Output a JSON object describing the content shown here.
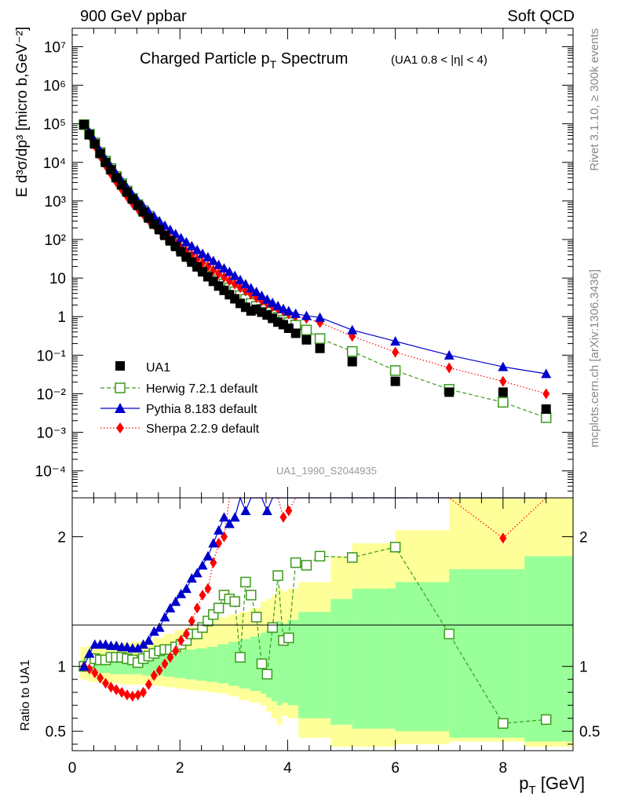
{
  "header": {
    "left": "900 GeV ppbar",
    "right": "Soft QCD"
  },
  "side": {
    "top": "Rivet 3.1.10, ≥ 300k events",
    "bottom": "mcplots.cern.ch [arXiv:1306.3436]"
  },
  "watermark": "UA1_1990_S2044935",
  "colors": {
    "data": "#000000",
    "herwig": "#3a9a1a",
    "pythia": "#0000cc",
    "sherpa": "#ff0000",
    "band_yellow": "#ffff99",
    "band_green": "#99ff99"
  },
  "chart_data": [
    {
      "type": "scatter",
      "title": "Charged Particle p",
      "title_sub": "T",
      "title_tail": " Spectrum",
      "title_cut": "(UA1 0.8 < |η| < 4)",
      "ylabel": "E d³σ/dp³ [micro b,GeV⁻²]",
      "yscale": "log",
      "ylim": [
        2e-05,
        30000000
      ],
      "xlim": [
        0,
        9.3
      ],
      "y_tick_labels": [
        "10⁻⁴",
        "10⁻³",
        "10⁻²",
        "10⁻¹",
        "1",
        "10",
        "10²",
        "10³",
        "10⁴",
        "10⁵",
        "10⁶",
        "10⁷"
      ],
      "legend": [
        {
          "key": "data",
          "label": "UA1"
        },
        {
          "key": "herwig",
          "label": "Herwig 7.2.1 default"
        },
        {
          "key": "pythia",
          "label": "Pythia 8.183 default"
        },
        {
          "key": "sherpa",
          "label": "Sherpa 2.2.9 default"
        }
      ],
      "x": [
        0.22,
        0.32,
        0.42,
        0.52,
        0.62,
        0.72,
        0.82,
        0.92,
        1.02,
        1.12,
        1.22,
        1.32,
        1.42,
        1.52,
        1.62,
        1.72,
        1.82,
        1.92,
        2.02,
        2.12,
        2.22,
        2.32,
        2.42,
        2.52,
        2.62,
        2.72,
        2.82,
        2.92,
        3.02,
        3.12,
        3.22,
        3.32,
        3.42,
        3.52,
        3.62,
        3.72,
        3.82,
        3.92,
        4.02,
        4.15,
        4.35,
        4.6,
        5.2,
        6.0,
        7.0,
        8.0,
        8.8
      ],
      "series": [
        {
          "key": "data",
          "name": "UA1",
          "values": [
            95000,
            52000,
            30000,
            17000,
            10000,
            6400,
            4000,
            2600,
            1700,
            1120,
            770,
            520,
            360,
            250,
            180,
            128,
            92,
            66,
            48,
            35,
            26,
            19.5,
            14.5,
            10.8,
            8.2,
            6.2,
            4.8,
            3.7,
            2.9,
            2.2,
            1.75,
            1.4,
            1.55,
            1.3,
            1.1,
            0.9,
            0.72,
            0.62,
            0.5,
            0.37,
            0.25,
            0.15,
            0.068,
            0.021,
            0.011,
            0.011,
            0.004
          ]
        },
        {
          "key": "herwig",
          "name": "Herwig 7.2.1 default",
          "values": [
            95000,
            54000,
            32000,
            18000,
            10800,
            6900,
            4300,
            2800,
            1800,
            1170,
            800,
            560,
            400,
            280,
            200,
            145,
            104,
            76,
            56,
            42,
            32,
            24.5,
            18.8,
            14.5,
            11.3,
            8.9,
            7.0,
            5.5,
            4.4,
            3.5,
            2.8,
            2.2,
            1.85,
            1.55,
            1.3,
            1.1,
            0.95,
            0.8,
            0.7,
            0.6,
            0.45,
            0.27,
            0.125,
            0.04,
            0.013,
            0.006,
            0.0024
          ]
        },
        {
          "key": "pythia",
          "name": "Pythia 8.183 default",
          "values": [
            95000,
            60000,
            36000,
            20000,
            12000,
            7700,
            5000,
            3300,
            2200,
            1450,
            1000,
            720,
            530,
            400,
            300,
            230,
            180,
            140,
            110,
            86,
            68,
            54,
            43,
            35,
            28,
            22,
            18,
            14.5,
            11.5,
            9,
            7,
            5.5,
            4.4,
            3.5,
            2.8,
            2.3,
            1.9,
            1.6,
            1.4,
            1.2,
            1.05,
            0.95,
            0.45,
            0.23,
            0.1,
            0.05,
            0.033
          ]
        },
        {
          "key": "sherpa",
          "name": "Sherpa 2.2.9 default",
          "values": [
            95000,
            50000,
            27000,
            14500,
            8300,
            5000,
            3100,
            2000,
            1300,
            870,
            620,
            450,
            320,
            240,
            180,
            135,
            103,
            80,
            62,
            49,
            39,
            31,
            25,
            20,
            16,
            13,
            10.5,
            8.5,
            7,
            5.7,
            4.6,
            3.8,
            3.1,
            2.6,
            2.2,
            1.85,
            1.6,
            1.4,
            1.2,
            1.05,
            0.9,
            0.7,
            0.31,
            0.12,
            0.047,
            0.021,
            0.01
          ]
        }
      ]
    },
    {
      "type": "scatter",
      "ylabel": "Ratio to UA1",
      "xlabel": "p",
      "xlabel_sub": "T",
      "xlabel_unit": " [GeV]",
      "ylim": [
        0.35,
        2.3
      ],
      "xlim": [
        0,
        9.3
      ],
      "y_tick_labels": [
        "0.5",
        "1",
        "2"
      ],
      "x_tick_labels": [
        "0",
        "2",
        "4",
        "6",
        "8"
      ],
      "band_edges": [
        0.15,
        0.3,
        0.5,
        0.7,
        0.9,
        1.1,
        1.3,
        1.5,
        1.7,
        1.9,
        2.1,
        2.3,
        2.5,
        2.7,
        2.9,
        3.1,
        3.3,
        3.5,
        3.6,
        3.7,
        3.8,
        3.9,
        4.0,
        4.2,
        4.8,
        5.2,
        6.0,
        7.0,
        8.4,
        9.3
      ],
      "band_yellow": [
        [
          0.9,
          1.15
        ],
        [
          0.88,
          1.16
        ],
        [
          0.87,
          1.17
        ],
        [
          0.87,
          1.18
        ],
        [
          0.86,
          1.18
        ],
        [
          0.86,
          1.19
        ],
        [
          0.86,
          1.2
        ],
        [
          0.85,
          1.22
        ],
        [
          0.84,
          1.25
        ],
        [
          0.83,
          1.28
        ],
        [
          0.82,
          1.3
        ],
        [
          0.81,
          1.32
        ],
        [
          0.8,
          1.35
        ],
        [
          0.79,
          1.38
        ],
        [
          0.77,
          1.4
        ],
        [
          0.74,
          1.42
        ],
        [
          0.72,
          1.45
        ],
        [
          0.7,
          1.5
        ],
        [
          0.65,
          1.52
        ],
        [
          0.6,
          1.55
        ],
        [
          0.55,
          1.6
        ],
        [
          0.62,
          1.58
        ],
        [
          0.6,
          1.6
        ],
        [
          0.45,
          1.65
        ],
        [
          0.38,
          1.85
        ],
        [
          0.38,
          1.95
        ],
        [
          0.4,
          2.05
        ],
        [
          0.42,
          2.3
        ],
        [
          0.38,
          2.3
        ]
      ],
      "band_green": [
        [
          0.96,
          1.05
        ],
        [
          0.95,
          1.06
        ],
        [
          0.95,
          1.07
        ],
        [
          0.94,
          1.07
        ],
        [
          0.94,
          1.08
        ],
        [
          0.94,
          1.08
        ],
        [
          0.93,
          1.09
        ],
        [
          0.93,
          1.1
        ],
        [
          0.92,
          1.11
        ],
        [
          0.91,
          1.12
        ],
        [
          0.9,
          1.13
        ],
        [
          0.89,
          1.14
        ],
        [
          0.88,
          1.15
        ],
        [
          0.87,
          1.17
        ],
        [
          0.85,
          1.19
        ],
        [
          0.83,
          1.21
        ],
        [
          0.81,
          1.23
        ],
        [
          0.79,
          1.26
        ],
        [
          0.76,
          1.28
        ],
        [
          0.73,
          1.31
        ],
        [
          0.7,
          1.35
        ],
        [
          0.72,
          1.33
        ],
        [
          0.7,
          1.36
        ],
        [
          0.6,
          1.42
        ],
        [
          0.55,
          1.52
        ],
        [
          0.52,
          1.6
        ],
        [
          0.5,
          1.65
        ],
        [
          0.45,
          1.75
        ],
        [
          0.42,
          1.85
        ]
      ],
      "x": [
        0.22,
        0.32,
        0.42,
        0.52,
        0.62,
        0.72,
        0.82,
        0.92,
        1.02,
        1.12,
        1.22,
        1.32,
        1.42,
        1.52,
        1.62,
        1.72,
        1.82,
        1.92,
        2.02,
        2.12,
        2.22,
        2.32,
        2.42,
        2.52,
        2.62,
        2.72,
        2.82,
        2.92,
        3.02,
        3.12,
        3.22,
        3.32,
        3.42,
        3.52,
        3.62,
        3.72,
        3.82,
        3.92,
        4.02,
        4.15,
        4.35,
        4.6,
        5.2,
        6.0,
        7.0,
        8.0,
        8.8
      ],
      "series": [
        {
          "key": "herwig",
          "name": "Herwig 7.2.1 default",
          "values": [
            1.0,
            1.03,
            1.06,
            1.05,
            1.05,
            1.07,
            1.07,
            1.07,
            1.06,
            1.05,
            1.03,
            1.06,
            1.08,
            1.1,
            1.12,
            1.13,
            1.13,
            1.15,
            1.17,
            1.2,
            1.25,
            1.25,
            1.3,
            1.35,
            1.4,
            1.45,
            1.55,
            1.52,
            1.5,
            1.07,
            1.65,
            1.55,
            1.38,
            1.02,
            0.94,
            1.3,
            1.7,
            1.2,
            1.22,
            1.8,
            1.78,
            1.85,
            1.84,
            1.92,
            1.25,
            0.56,
            0.59
          ]
        },
        {
          "key": "pythia",
          "name": "Pythia 8.183 default",
          "values": [
            1.0,
            1.1,
            1.17,
            1.17,
            1.17,
            1.16,
            1.16,
            1.15,
            1.15,
            1.14,
            1.14,
            1.17,
            1.2,
            1.27,
            1.3,
            1.38,
            1.45,
            1.5,
            1.56,
            1.6,
            1.68,
            1.72,
            1.78,
            1.85,
            1.95,
            2.05,
            2.15,
            2.1,
            2.15,
            2.3,
            2.2,
            2.3,
            2.3,
            2.3,
            2.2,
            2.3,
            2.3,
            2.3,
            2.3,
            2.3,
            2.3,
            2.3,
            2.3,
            2.3,
            2.3,
            2.3,
            2.3
          ]
        },
        {
          "key": "sherpa",
          "name": "Sherpa 2.2.9 default",
          "values": [
            1.0,
            0.98,
            0.95,
            0.91,
            0.87,
            0.84,
            0.82,
            0.8,
            0.78,
            0.77,
            0.78,
            0.8,
            0.86,
            0.93,
            0.97,
            1.02,
            1.07,
            1.12,
            1.2,
            1.25,
            1.35,
            1.45,
            1.55,
            1.6,
            1.8,
            1.95,
            2.0,
            2.3,
            2.3,
            2.3,
            2.3,
            2.3,
            2.3,
            2.3,
            2.3,
            2.3,
            2.3,
            2.15,
            2.2,
            2.3,
            2.3,
            2.3,
            2.3,
            2.3,
            2.3,
            1.99,
            2.3
          ]
        }
      ]
    }
  ]
}
